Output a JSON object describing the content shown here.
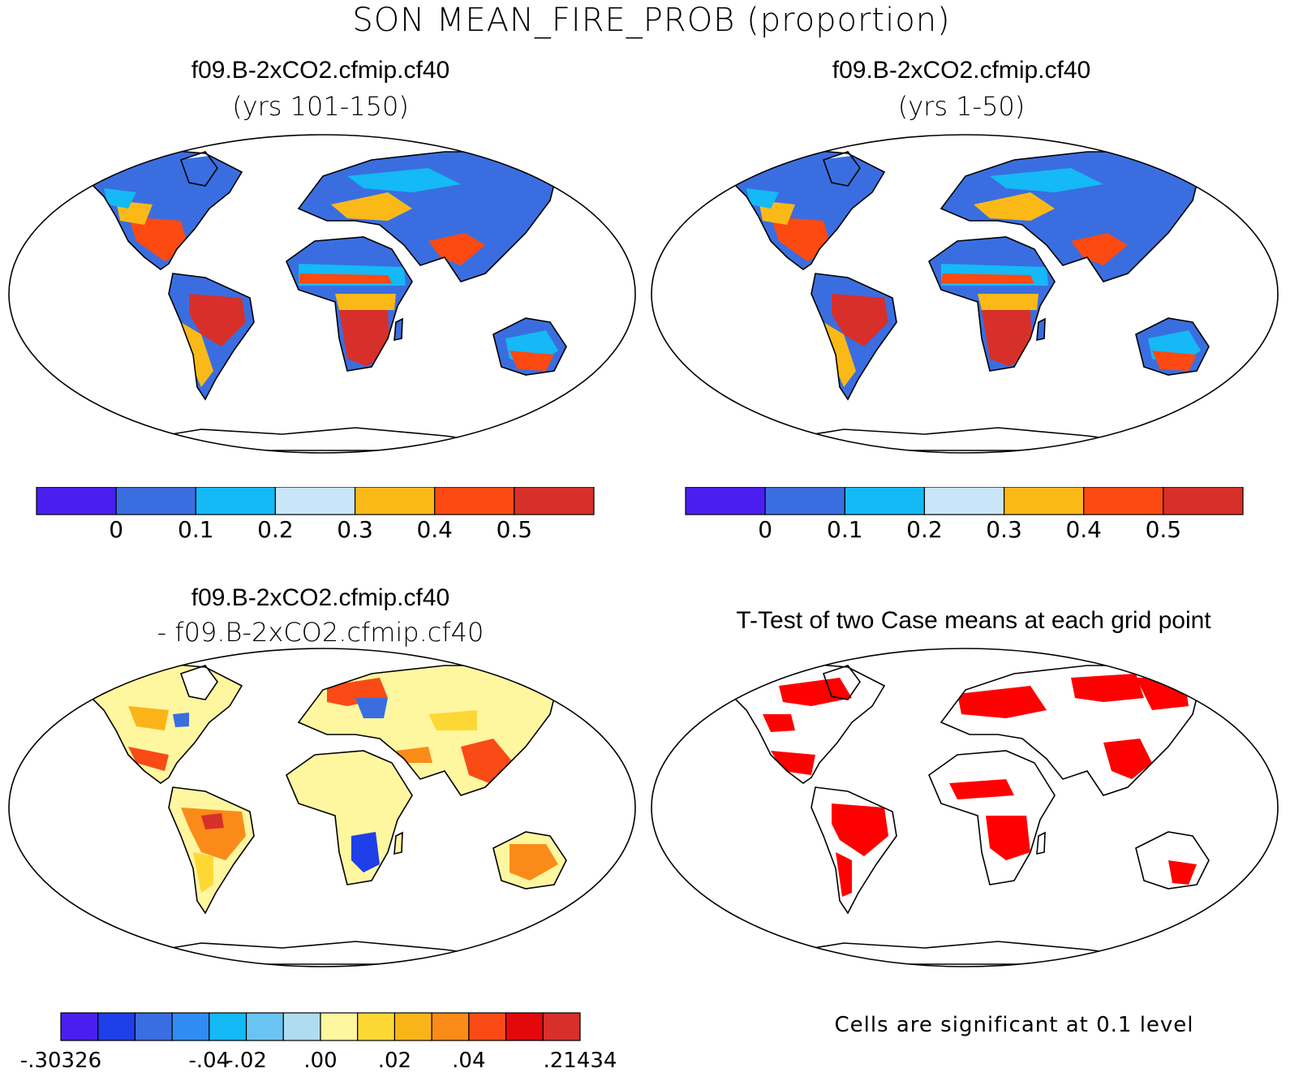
{
  "title": "SON MEAN_FIRE_PROB (proportion)",
  "panels": [
    {
      "id": "case1",
      "title": "f09.B-2xCO2.cfmip.cf40",
      "subtitle": "(yrs 101-150)",
      "colorbar": {
        "colors": [
          "#4b1ef0",
          "#3a6ee0",
          "#14b9f5",
          "#c8e6f7",
          "#fbb918",
          "#fc4a12",
          "#d7302a"
        ],
        "labels": [
          "0",
          "0.1",
          "0.2",
          "0.3",
          "0.4",
          "0.5"
        ]
      }
    },
    {
      "id": "case2",
      "title": "f09.B-2xCO2.cfmip.cf40",
      "subtitle": "(yrs 1-50)",
      "colorbar": {
        "colors": [
          "#4b1ef0",
          "#3a6ee0",
          "#14b9f5",
          "#c8e6f7",
          "#fbb918",
          "#fc4a12",
          "#d7302a"
        ],
        "labels": [
          "0",
          "0.1",
          "0.2",
          "0.3",
          "0.4",
          "0.5"
        ]
      }
    },
    {
      "id": "diff",
      "title": "f09.B-2xCO2.cfmip.cf40",
      "subtitle": "- f09.B-2xCO2.cfmip.cf40",
      "colorbar": {
        "colors": [
          "#4b1ef0",
          "#1f3fe8",
          "#3a6ee0",
          "#2f8cf0",
          "#14b9f5",
          "#6ac4f2",
          "#b0dcf2",
          "#fff6a0",
          "#fdd835",
          "#fbb418",
          "#fb8b18",
          "#fa4a16",
          "#e3080b",
          "#d7302a"
        ],
        "labels": [
          "-.30326",
          "-.04",
          "-.02",
          ".00",
          ".02",
          ".04",
          ".21434"
        ]
      }
    },
    {
      "id": "ttest",
      "title": "T-Test of two Case means at each grid point",
      "note": "Cells are significant at 0.1 level",
      "sig_color": "#ff0000"
    }
  ]
}
